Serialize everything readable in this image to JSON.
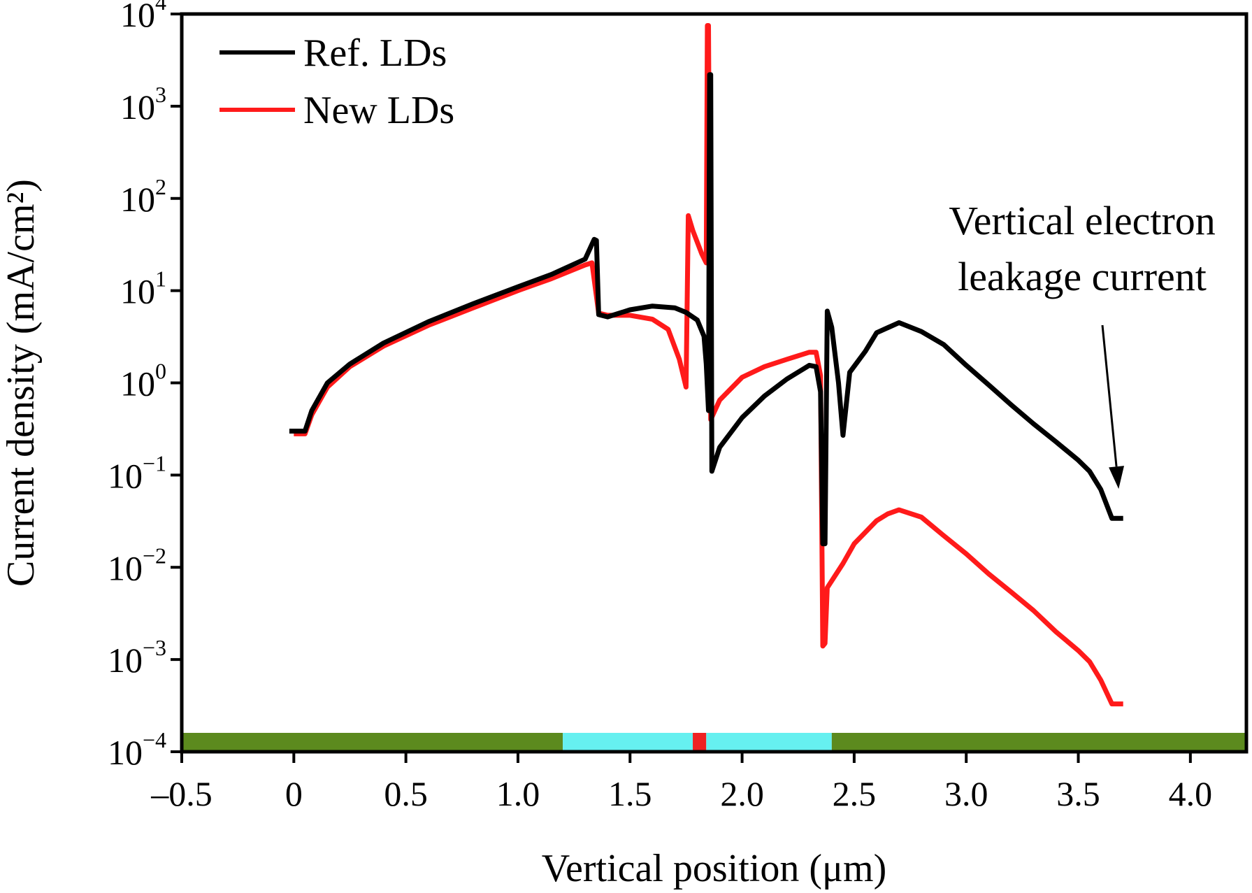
{
  "chart_data": {
    "type": "line",
    "xlabel": "Vertical position (μm)",
    "ylabel": "Current density (mA/cm²)",
    "xlim": [
      -0.5,
      4.25
    ],
    "ylim": [
      0.0001,
      10000
    ],
    "y_scale": "log",
    "x_ticks": [
      -0.5,
      0,
      0.5,
      1.0,
      1.5,
      2.0,
      2.5,
      3.0,
      3.5,
      4.0
    ],
    "x_tick_labels": [
      "–0.5",
      "0",
      "0.5",
      "1.0",
      "1.5",
      "2.0",
      "2.5",
      "3.0",
      "3.5",
      "4.0"
    ],
    "y_ticks": [
      {
        "value": 0.0001,
        "base": "10",
        "exp": "−4"
      },
      {
        "value": 0.001,
        "base": "10",
        "exp": "−3"
      },
      {
        "value": 0.01,
        "base": "10",
        "exp": "−2"
      },
      {
        "value": 0.1,
        "base": "10",
        "exp": "−1"
      },
      {
        "value": 1,
        "base": "10",
        "exp": "0"
      },
      {
        "value": 10,
        "base": "10",
        "exp": "1"
      },
      {
        "value": 100,
        "base": "10",
        "exp": "2"
      },
      {
        "value": 1000,
        "base": "10",
        "exp": "3"
      },
      {
        "value": 10000,
        "base": "10",
        "exp": "4"
      }
    ],
    "legend_position": "top-left",
    "annotation": {
      "lines": [
        "Vertical electron",
        "leakage current"
      ],
      "arrow_target": {
        "x": 3.68,
        "y": 0.05
      }
    },
    "layer_bar": [
      {
        "x0": -0.5,
        "x1": 1.2,
        "color": "#5c8a1e"
      },
      {
        "x0": 1.2,
        "x1": 1.78,
        "color": "#66f0f0"
      },
      {
        "x0": 1.78,
        "x1": 1.84,
        "color": "#ee2222"
      },
      {
        "x0": 1.84,
        "x1": 2.4,
        "color": "#66f0f0"
      },
      {
        "x0": 2.4,
        "x1": 4.25,
        "color": "#5c8a1e"
      }
    ],
    "series": [
      {
        "name": "New LDs",
        "color": "#ff1a1a",
        "points": [
          [
            0.0,
            0.28
          ],
          [
            0.05,
            0.28
          ],
          [
            0.08,
            0.45
          ],
          [
            0.15,
            0.9
          ],
          [
            0.25,
            1.5
          ],
          [
            0.4,
            2.5
          ],
          [
            0.6,
            4.2
          ],
          [
            0.8,
            6.5
          ],
          [
            1.0,
            10
          ],
          [
            1.15,
            13.5
          ],
          [
            1.3,
            19
          ],
          [
            1.33,
            20
          ],
          [
            1.36,
            5.7
          ],
          [
            1.4,
            5.4
          ],
          [
            1.5,
            5.4
          ],
          [
            1.6,
            4.9
          ],
          [
            1.67,
            3.8
          ],
          [
            1.72,
            1.8
          ],
          [
            1.75,
            0.9
          ],
          [
            1.76,
            65
          ],
          [
            1.78,
            45
          ],
          [
            1.82,
            25
          ],
          [
            1.84,
            20
          ],
          [
            1.845,
            7500
          ],
          [
            1.85,
            7500
          ],
          [
            1.86,
            0.4
          ],
          [
            1.9,
            0.65
          ],
          [
            2.0,
            1.15
          ],
          [
            2.1,
            1.5
          ],
          [
            2.2,
            1.8
          ],
          [
            2.3,
            2.15
          ],
          [
            2.33,
            2.15
          ],
          [
            2.35,
            1.2
          ],
          [
            2.36,
            0.0014
          ],
          [
            2.37,
            0.0015
          ],
          [
            2.38,
            0.006
          ],
          [
            2.45,
            0.011
          ],
          [
            2.5,
            0.018
          ],
          [
            2.6,
            0.032
          ],
          [
            2.65,
            0.038
          ],
          [
            2.7,
            0.042
          ],
          [
            2.8,
            0.035
          ],
          [
            2.9,
            0.022
          ],
          [
            3.0,
            0.014
          ],
          [
            3.1,
            0.0085
          ],
          [
            3.2,
            0.0054
          ],
          [
            3.3,
            0.0034
          ],
          [
            3.4,
            0.002
          ],
          [
            3.5,
            0.00125
          ],
          [
            3.55,
            0.00095
          ],
          [
            3.6,
            0.0006
          ],
          [
            3.65,
            0.00033
          ],
          [
            3.7,
            0.00033
          ]
        ]
      },
      {
        "name": "Ref. LDs",
        "color": "#000000",
        "points": [
          [
            -0.02,
            0.3
          ],
          [
            0.05,
            0.3
          ],
          [
            0.08,
            0.5
          ],
          [
            0.15,
            1.0
          ],
          [
            0.25,
            1.6
          ],
          [
            0.4,
            2.7
          ],
          [
            0.6,
            4.6
          ],
          [
            0.8,
            7.2
          ],
          [
            1.0,
            11
          ],
          [
            1.15,
            15
          ],
          [
            1.3,
            22
          ],
          [
            1.34,
            36
          ],
          [
            1.35,
            35
          ],
          [
            1.36,
            5.5
          ],
          [
            1.4,
            5.2
          ],
          [
            1.5,
            6.2
          ],
          [
            1.6,
            6.8
          ],
          [
            1.7,
            6.5
          ],
          [
            1.75,
            5.8
          ],
          [
            1.8,
            4.8
          ],
          [
            1.83,
            3.2
          ],
          [
            1.84,
            1.6
          ],
          [
            1.85,
            0.5
          ],
          [
            1.855,
            2200
          ],
          [
            1.86,
            2200
          ],
          [
            1.865,
            0.11
          ],
          [
            1.9,
            0.2
          ],
          [
            2.0,
            0.42
          ],
          [
            2.1,
            0.72
          ],
          [
            2.2,
            1.1
          ],
          [
            2.3,
            1.55
          ],
          [
            2.33,
            1.5
          ],
          [
            2.35,
            0.8
          ],
          [
            2.36,
            0.018
          ],
          [
            2.37,
            0.018
          ],
          [
            2.38,
            6.0
          ],
          [
            2.4,
            4.0
          ],
          [
            2.43,
            1.0
          ],
          [
            2.45,
            0.27
          ],
          [
            2.48,
            1.3
          ],
          [
            2.55,
            2.2
          ],
          [
            2.6,
            3.5
          ],
          [
            2.7,
            4.5
          ],
          [
            2.8,
            3.6
          ],
          [
            2.9,
            2.6
          ],
          [
            3.0,
            1.55
          ],
          [
            3.1,
            0.95
          ],
          [
            3.2,
            0.58
          ],
          [
            3.3,
            0.36
          ],
          [
            3.4,
            0.23
          ],
          [
            3.5,
            0.145
          ],
          [
            3.55,
            0.11
          ],
          [
            3.6,
            0.07
          ],
          [
            3.65,
            0.034
          ],
          [
            3.7,
            0.034
          ]
        ]
      }
    ]
  }
}
